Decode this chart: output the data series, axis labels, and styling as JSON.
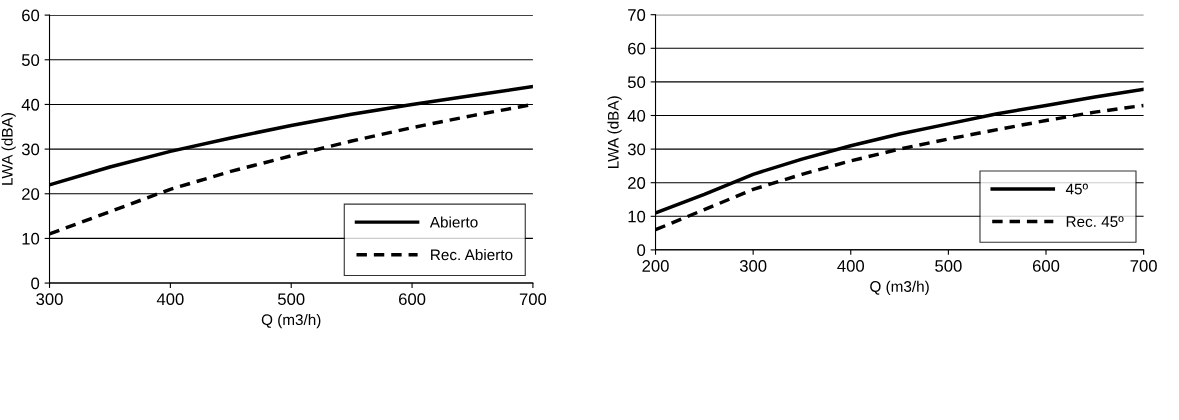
{
  "chart_data": [
    {
      "type": "line",
      "xlabel": "Q (m3/h)",
      "ylabel": "LWA (dBA)",
      "x": [
        300,
        350,
        400,
        450,
        500,
        550,
        600,
        650,
        700
      ],
      "xlim": [
        300,
        700
      ],
      "xticks": [
        300,
        400,
        500,
        600,
        700
      ],
      "ylim": [
        0,
        60
      ],
      "yticks": [
        0,
        10,
        20,
        30,
        40,
        50,
        60
      ],
      "grid": "y",
      "legend": "bottom right",
      "series": [
        {
          "name": "Abierto",
          "color": "#000000",
          "line_style": "solid",
          "values": [
            22,
            26,
            29.5,
            32.5,
            35.3,
            37.8,
            40,
            42,
            44
          ]
        },
        {
          "name": "Rec. Abierto",
          "color": "#000000",
          "line_style": "dashed",
          "values": [
            11,
            16,
            21,
            25,
            28.5,
            31.8,
            34.8,
            37.5,
            40
          ]
        }
      ]
    },
    {
      "type": "line",
      "xlabel": "Q (m3/h)",
      "ylabel": "LWA (dBA)",
      "x": [
        200,
        250,
        300,
        350,
        400,
        450,
        500,
        550,
        600,
        650,
        700
      ],
      "xlim": [
        200,
        700
      ],
      "xticks": [
        200,
        300,
        400,
        500,
        600,
        700
      ],
      "ylim": [
        0,
        70
      ],
      "yticks": [
        0,
        10,
        20,
        30,
        40,
        50,
        60,
        70
      ],
      "grid": "y",
      "legend": "bottom right",
      "series": [
        {
          "name": "45º",
          "color": "#000000",
          "line_style": "solid",
          "values": [
            11,
            16.5,
            22.5,
            27,
            31,
            34.5,
            37.5,
            40.5,
            43,
            45.5,
            47.8
          ]
        },
        {
          "name": "Rec. 45º",
          "color": "#000000",
          "line_style": "dashed",
          "values": [
            6,
            12,
            18,
            22.5,
            26.5,
            30,
            33,
            35.8,
            38.5,
            41,
            43
          ]
        }
      ]
    }
  ]
}
